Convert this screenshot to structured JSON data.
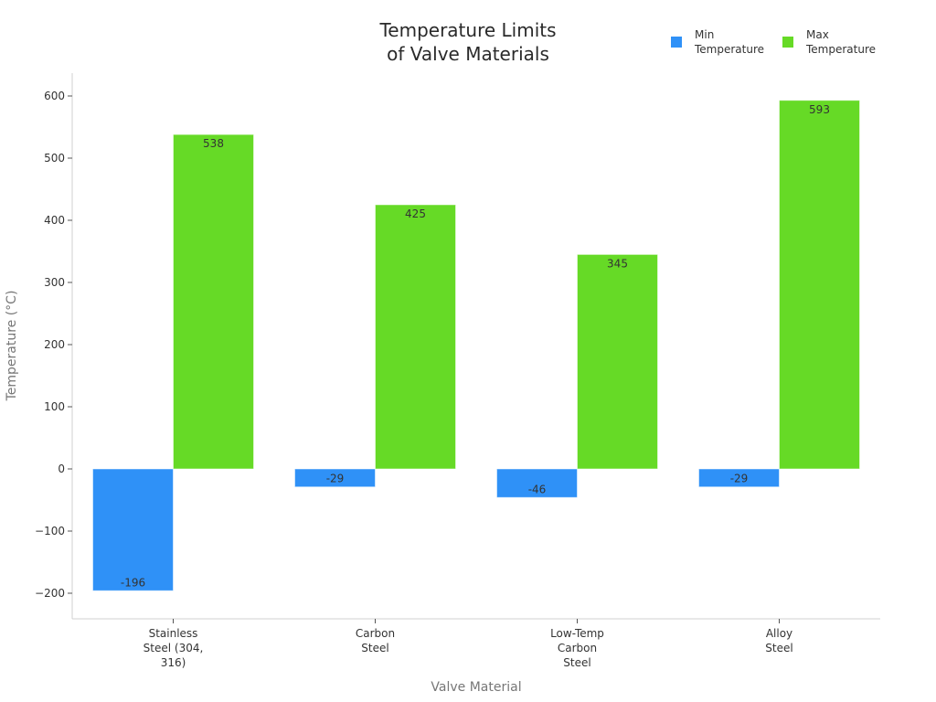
{
  "chart_data": {
    "type": "bar",
    "title": "Temperature Limits of Valve Materials",
    "title_lines": [
      "Temperature Limits",
      "of Valve Materials"
    ],
    "xlabel": "Valve Material",
    "ylabel": "Temperature (°C)",
    "categories": [
      "Stainless Steel (304, 316)",
      "Carbon Steel",
      "Low-Temp Carbon Steel",
      "Alloy Steel"
    ],
    "category_lines": [
      [
        "Stainless",
        "Steel (304,",
        "316)"
      ],
      [
        "Carbon",
        "Steel"
      ],
      [
        "Low-Temp",
        "Carbon",
        "Steel"
      ],
      [
        "Alloy",
        "Steel"
      ]
    ],
    "series": [
      {
        "name": "Min Temperature",
        "legend_lines": [
          "Min",
          "Temperature"
        ],
        "color": "#2f91f7",
        "values": [
          -196,
          -29,
          -46,
          -29
        ]
      },
      {
        "name": "Max Temperature",
        "legend_lines": [
          "Max",
          "Temperature"
        ],
        "color": "#66da26",
        "values": [
          538,
          425,
          345,
          593
        ]
      }
    ],
    "ylim": [
      -240,
      636
    ],
    "yticks": [
      -200,
      -100,
      0,
      100,
      200,
      300,
      400,
      500,
      600
    ],
    "ytick_labels": [
      "−200",
      "−100",
      "0",
      "100",
      "200",
      "300",
      "400",
      "500",
      "600"
    ],
    "grid": false,
    "legend_position": "top-right",
    "data_labels": true
  }
}
